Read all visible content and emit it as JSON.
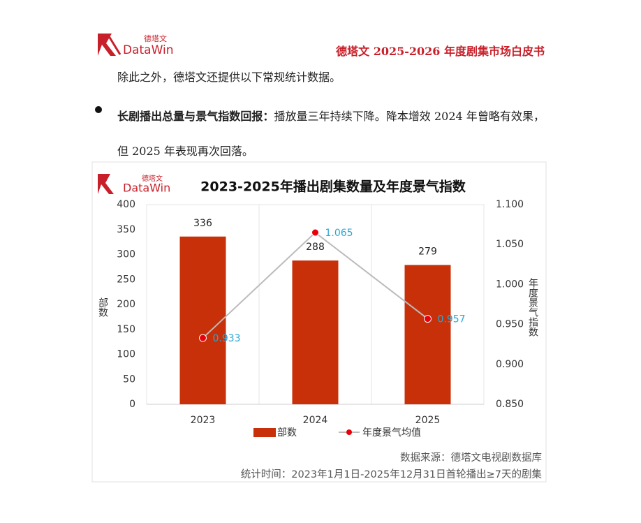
{
  "logo": {
    "name_cn": "德塔文",
    "name_en": "DataWin"
  },
  "header": {
    "title": "德塔文 2025-2026 年度剧集市场白皮书"
  },
  "paragraphs": [
    "除此之外，德塔文还提供以下常规统计数据。"
  ],
  "bullets": [
    {
      "lead": "长剧播出总量与景气指数回报：",
      "text": "播放量三年持续下降。降本增效 2024 年曾略有效果，但 2025 年表现再次回落。"
    }
  ],
  "chart_data": {
    "type": "bar",
    "title": "2023-2025年播出剧集数量及年度景气指数",
    "categories": [
      "2023",
      "2024",
      "2025"
    ],
    "series": [
      {
        "name": "部数",
        "color": "#c8300a",
        "type": "bar",
        "values": [
          336,
          288,
          279
        ]
      },
      {
        "name": "年度景气均值",
        "color": "#bbbbbb",
        "marker_color": "#e8000b",
        "label_color": "#2aa7d6",
        "type": "line",
        "axis": "y2",
        "values": [
          0.933,
          1.065,
          0.957
        ]
      }
    ],
    "ylabel": "部数",
    "y2label": "年度景气指数",
    "ylim": [
      0,
      400
    ],
    "yticks": [
      0,
      50,
      100,
      150,
      200,
      250,
      300,
      350,
      400
    ],
    "y2lim": [
      0.85,
      1.1
    ],
    "y2ticks": [
      {
        "value": 0.85,
        "label": "0.850"
      },
      {
        "value": 0.9,
        "label": "0.900"
      },
      {
        "value": 0.95,
        "label": "0.950"
      },
      {
        "value": 1.0,
        "label": "1.000"
      },
      {
        "value": 1.05,
        "label": "1.050"
      },
      {
        "value": 1.1,
        "label": "1.100"
      }
    ],
    "notes": [
      "数据来源：德塔文电视剧数据库",
      "统计时间：2023年1月1日-2025年12月31日首轮播出≥7天的剧集"
    ]
  }
}
